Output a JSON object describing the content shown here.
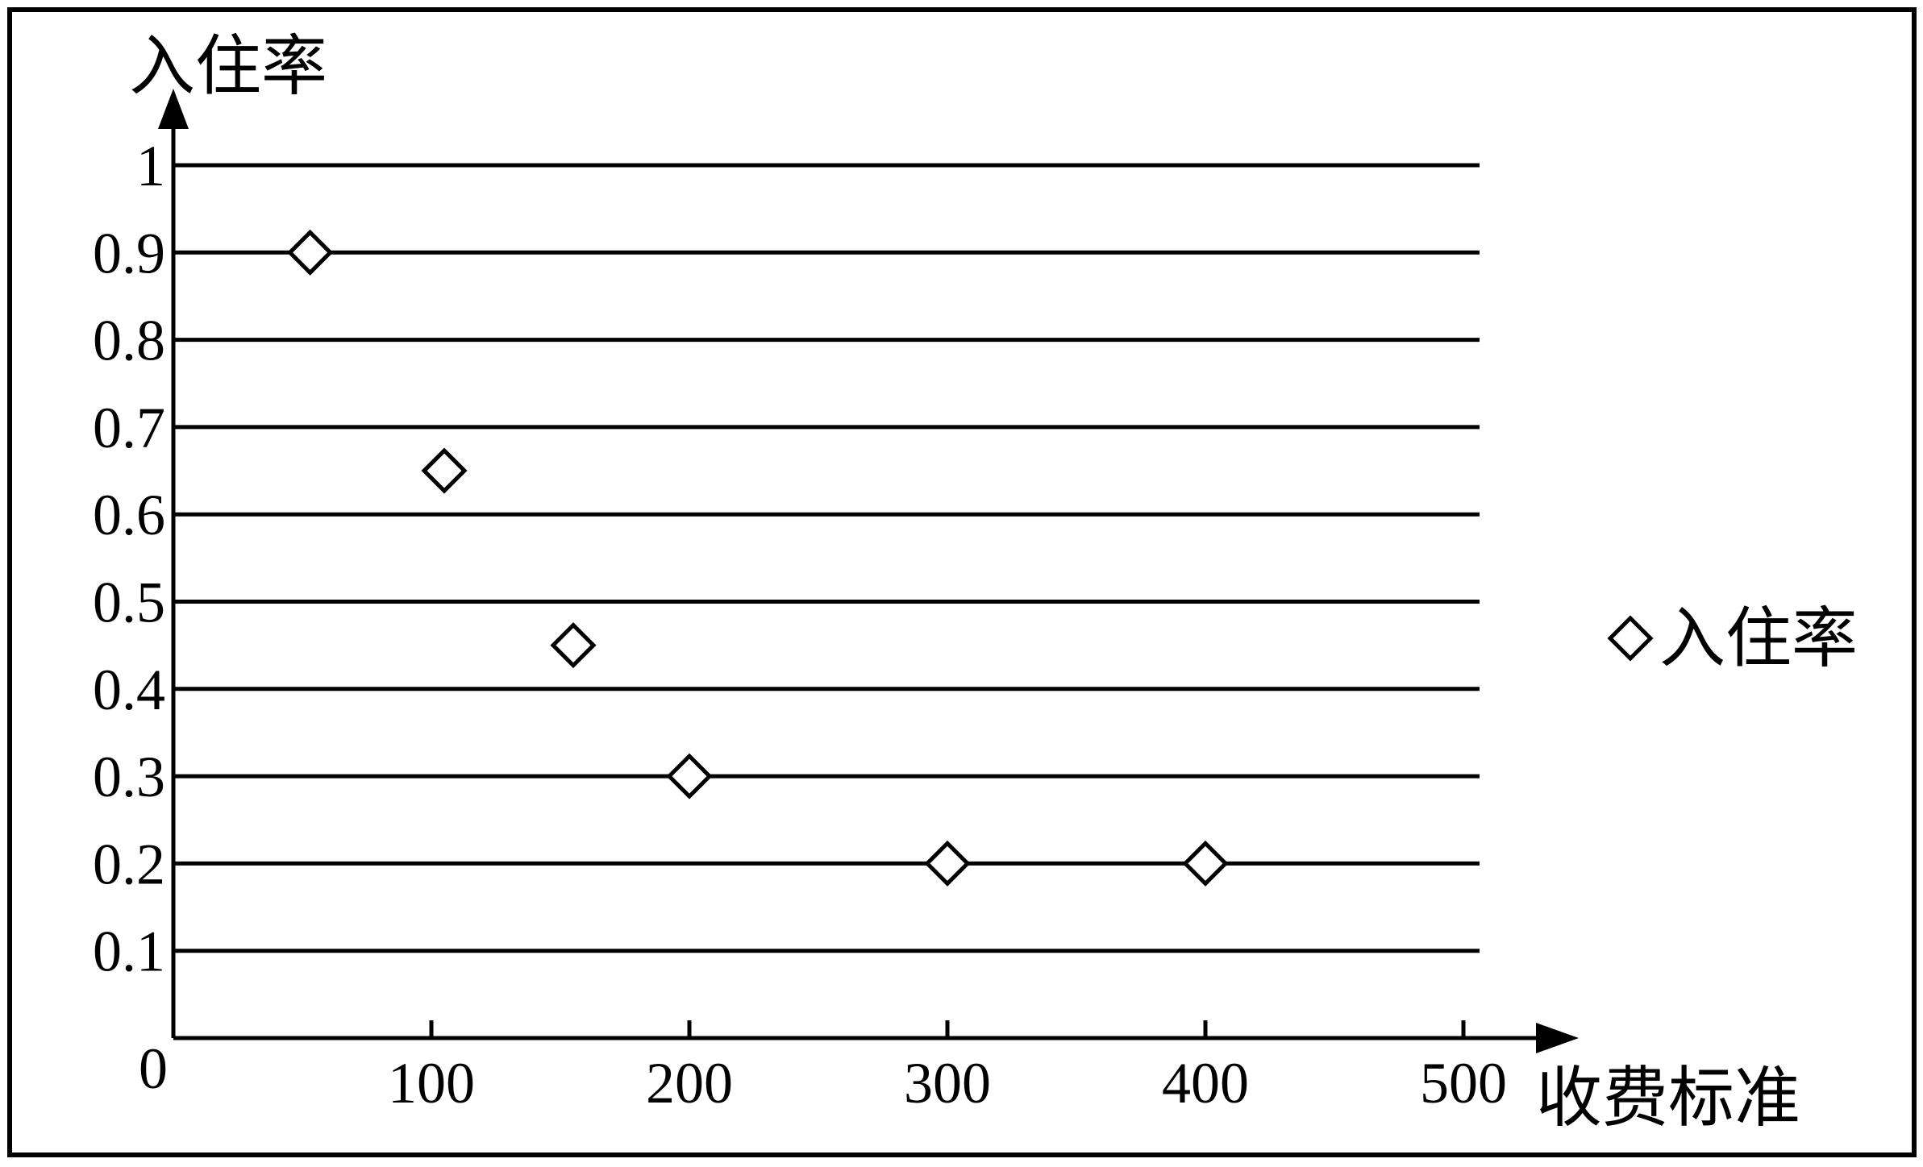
{
  "chart_data": {
    "type": "scatter",
    "title": "",
    "xlabel": "收费标准",
    "ylabel": "入住率",
    "xlim": [
      0,
      500
    ],
    "ylim": [
      0,
      1
    ],
    "x_ticks": [
      100,
      200,
      300,
      400,
      500
    ],
    "x_tick_labels": [
      "100",
      "200",
      "300",
      "400",
      "500"
    ],
    "y_ticks": [
      0.1,
      0.2,
      0.3,
      0.4,
      0.5,
      0.6,
      0.7,
      0.8,
      0.9,
      1
    ],
    "y_tick_labels": [
      "0.1",
      "0.2",
      "0.3",
      "0.4",
      "0.5",
      "0.6",
      "0.7",
      "0.8",
      "0.9",
      "1"
    ],
    "origin_label": "0",
    "grid": "horizontal",
    "legend_position": "right",
    "marker": "diamond-hollow",
    "series": [
      {
        "name": "入住率",
        "points": [
          {
            "x": 53,
            "y": 0.9
          },
          {
            "x": 105,
            "y": 0.65
          },
          {
            "x": 155,
            "y": 0.45
          },
          {
            "x": 200,
            "y": 0.3
          },
          {
            "x": 300,
            "y": 0.2
          },
          {
            "x": 400,
            "y": 0.2
          }
        ]
      }
    ]
  }
}
